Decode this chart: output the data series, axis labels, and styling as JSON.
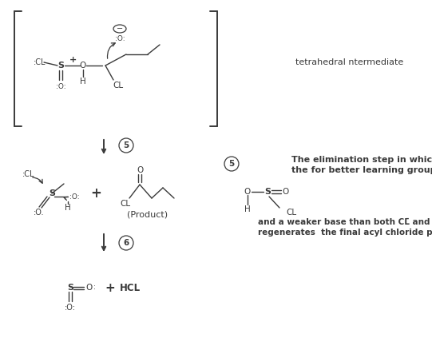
{
  "bg": "#ffffff",
  "fg": "#3a3a3a",
  "title": "tetrahedral ntermediate",
  "s5_l1": "The elimination step in which",
  "s5_l2": "the for better learning group",
  "s5_l3": "and a weaker base than both CL̄ and OH̄",
  "s5_l4": "regenerates  the final acyl chloride product.",
  "prod": "(Product)"
}
